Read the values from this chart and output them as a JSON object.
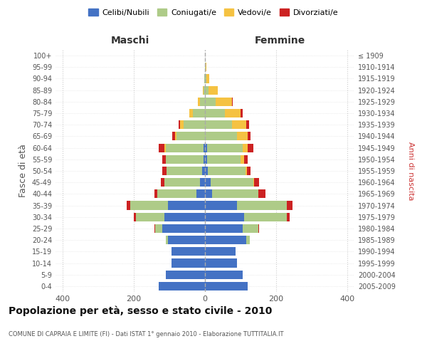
{
  "age_groups": [
    "0-4",
    "5-9",
    "10-14",
    "15-19",
    "20-24",
    "25-29",
    "30-34",
    "35-39",
    "40-44",
    "45-49",
    "50-54",
    "55-59",
    "60-64",
    "65-69",
    "70-74",
    "75-79",
    "80-84",
    "85-89",
    "90-94",
    "95-99",
    "100+"
  ],
  "birth_years": [
    "2005-2009",
    "2000-2004",
    "1995-1999",
    "1990-1994",
    "1985-1989",
    "1980-1984",
    "1975-1979",
    "1970-1974",
    "1965-1969",
    "1960-1964",
    "1955-1959",
    "1950-1954",
    "1945-1949",
    "1940-1944",
    "1935-1939",
    "1930-1934",
    "1925-1929",
    "1920-1924",
    "1915-1919",
    "1910-1914",
    "≤ 1909"
  ],
  "maschi": {
    "celibi": [
      130,
      110,
      95,
      95,
      105,
      120,
      115,
      105,
      25,
      15,
      8,
      5,
      5,
      0,
      0,
      0,
      0,
      0,
      0,
      0,
      0
    ],
    "coniugati": [
      0,
      0,
      0,
      0,
      5,
      20,
      80,
      105,
      110,
      100,
      100,
      105,
      105,
      80,
      60,
      35,
      15,
      5,
      2,
      1,
      0
    ],
    "vedovi": [
      0,
      0,
      0,
      0,
      0,
      0,
      0,
      0,
      0,
      0,
      0,
      0,
      5,
      5,
      10,
      10,
      5,
      2,
      0,
      0,
      0
    ],
    "divorziati": [
      0,
      0,
      0,
      0,
      0,
      2,
      5,
      10,
      8,
      10,
      12,
      10,
      15,
      8,
      5,
      0,
      0,
      0,
      0,
      0,
      0
    ]
  },
  "femmine": {
    "nubili": [
      120,
      105,
      90,
      85,
      115,
      105,
      110,
      90,
      20,
      15,
      8,
      5,
      5,
      0,
      0,
      0,
      0,
      0,
      0,
      0,
      0
    ],
    "coniugate": [
      0,
      0,
      0,
      0,
      10,
      45,
      120,
      140,
      130,
      120,
      105,
      95,
      100,
      90,
      75,
      55,
      30,
      10,
      3,
      1,
      0
    ],
    "vedove": [
      0,
      0,
      0,
      0,
      0,
      0,
      0,
      0,
      0,
      2,
      5,
      10,
      15,
      30,
      40,
      45,
      45,
      25,
      8,
      2,
      0
    ],
    "divorziate": [
      0,
      0,
      0,
      0,
      0,
      2,
      8,
      15,
      20,
      15,
      10,
      10,
      15,
      8,
      8,
      5,
      2,
      0,
      0,
      0,
      0
    ]
  },
  "colors": {
    "celibi": "#4472C4",
    "coniugati": "#AECB88",
    "vedovi": "#F5C242",
    "divorziati": "#CC2222"
  },
  "xlim": 420,
  "title": "Popolazione per età, sesso e stato civile - 2010",
  "subtitle": "COMUNE DI CAPRAIA E LIMITE (FI) - Dati ISTAT 1° gennaio 2010 - Elaborazione TUTTITALIA.IT",
  "ylabel_left": "Fasce di età",
  "ylabel_right": "Anni di nascita",
  "legend_labels": [
    "Celibi/Nubili",
    "Coniugati/e",
    "Vedovi/e",
    "Divorziati/e"
  ],
  "maschi_label": "Maschi",
  "femmine_label": "Femmine"
}
